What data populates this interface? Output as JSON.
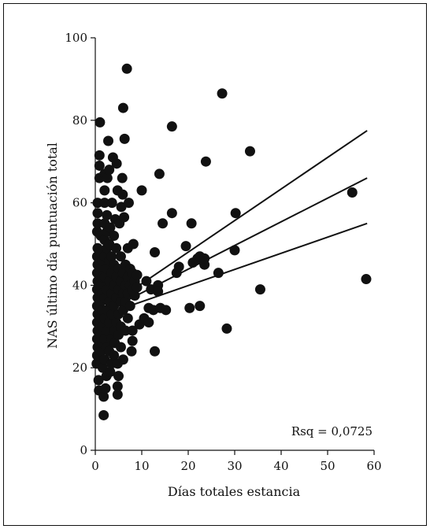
{
  "chart_data": {
    "type": "scatter",
    "title": "",
    "xlabel": "Días totales estancia",
    "ylabel": "NAS último día puntuación total",
    "xlim": [
      0,
      60
    ],
    "ylim": [
      0,
      100
    ],
    "x_ticks": [
      0,
      10,
      20,
      30,
      40,
      50,
      60
    ],
    "y_ticks": [
      0,
      20,
      40,
      60,
      80,
      100
    ],
    "grid": false,
    "annotation": "Rsq = 0,0725",
    "colors": {
      "points": "#111111",
      "lines": "#111111",
      "axes": "#111111"
    },
    "points": [
      {
        "x": 0.3,
        "y": 21
      },
      {
        "x": 0.4,
        "y": 23
      },
      {
        "x": 0.5,
        "y": 25
      },
      {
        "x": 0.4,
        "y": 27
      },
      {
        "x": 0.5,
        "y": 29
      },
      {
        "x": 0.4,
        "y": 31
      },
      {
        "x": 0.5,
        "y": 33
      },
      {
        "x": 0.4,
        "y": 35
      },
      {
        "x": 0.5,
        "y": 37
      },
      {
        "x": 0.4,
        "y": 39
      },
      {
        "x": 0.5,
        "y": 41
      },
      {
        "x": 0.4,
        "y": 43
      },
      {
        "x": 0.5,
        "y": 45
      },
      {
        "x": 0.4,
        "y": 47
      },
      {
        "x": 0.5,
        "y": 49
      },
      {
        "x": 0.4,
        "y": 53
      },
      {
        "x": 0.5,
        "y": 55
      },
      {
        "x": 0.5,
        "y": 57.5
      },
      {
        "x": 0.5,
        "y": 60
      },
      {
        "x": 0.7,
        "y": 17
      },
      {
        "x": 0.8,
        "y": 14.5
      },
      {
        "x": 0.9,
        "y": 66
      },
      {
        "x": 0.9,
        "y": 69
      },
      {
        "x": 0.9,
        "y": 71.5
      },
      {
        "x": 1.0,
        "y": 79.5
      },
      {
        "x": 1.2,
        "y": 24
      },
      {
        "x": 1.2,
        "y": 28
      },
      {
        "x": 1.2,
        "y": 32
      },
      {
        "x": 1.2,
        "y": 36
      },
      {
        "x": 1.2,
        "y": 40
      },
      {
        "x": 1.2,
        "y": 44
      },
      {
        "x": 1.2,
        "y": 48
      },
      {
        "x": 1.2,
        "y": 52
      },
      {
        "x": 1.5,
        "y": 42
      },
      {
        "x": 1.5,
        "y": 46
      },
      {
        "x": 1.5,
        "y": 38
      },
      {
        "x": 1.5,
        "y": 34
      },
      {
        "x": 1.5,
        "y": 30
      },
      {
        "x": 1.5,
        "y": 26
      },
      {
        "x": 1.6,
        "y": 20
      },
      {
        "x": 1.8,
        "y": 8.5
      },
      {
        "x": 1.8,
        "y": 13
      },
      {
        "x": 2.0,
        "y": 22
      },
      {
        "x": 2.0,
        "y": 27
      },
      {
        "x": 2.0,
        "y": 32
      },
      {
        "x": 2.0,
        "y": 37
      },
      {
        "x": 2.0,
        "y": 42
      },
      {
        "x": 2.0,
        "y": 47
      },
      {
        "x": 2.0,
        "y": 51
      },
      {
        "x": 2.0,
        "y": 55
      },
      {
        "x": 2.0,
        "y": 60
      },
      {
        "x": 2.0,
        "y": 63
      },
      {
        "x": 2.0,
        "y": 67
      },
      {
        "x": 2.2,
        "y": 15
      },
      {
        "x": 2.4,
        "y": 18
      },
      {
        "x": 2.5,
        "y": 25
      },
      {
        "x": 2.5,
        "y": 29
      },
      {
        "x": 2.5,
        "y": 34
      },
      {
        "x": 2.5,
        "y": 39
      },
      {
        "x": 2.5,
        "y": 44
      },
      {
        "x": 2.5,
        "y": 49
      },
      {
        "x": 2.5,
        "y": 53
      },
      {
        "x": 2.5,
        "y": 57
      },
      {
        "x": 2.6,
        "y": 66
      },
      {
        "x": 2.8,
        "y": 75
      },
      {
        "x": 3.0,
        "y": 24
      },
      {
        "x": 3.0,
        "y": 31
      },
      {
        "x": 3.0,
        "y": 36
      },
      {
        "x": 3.0,
        "y": 41
      },
      {
        "x": 3.0,
        "y": 46
      },
      {
        "x": 3.0,
        "y": 50
      },
      {
        "x": 3.0,
        "y": 68
      },
      {
        "x": 3.2,
        "y": 19
      },
      {
        "x": 3.2,
        "y": 54
      },
      {
        "x": 3.5,
        "y": 21
      },
      {
        "x": 3.5,
        "y": 27
      },
      {
        "x": 3.5,
        "y": 33
      },
      {
        "x": 3.5,
        "y": 38
      },
      {
        "x": 3.5,
        "y": 43
      },
      {
        "x": 3.5,
        "y": 47
      },
      {
        "x": 3.6,
        "y": 60
      },
      {
        "x": 3.8,
        "y": 71
      },
      {
        "x": 4.0,
        "y": 23
      },
      {
        "x": 4.0,
        "y": 29
      },
      {
        "x": 4.0,
        "y": 35
      },
      {
        "x": 4.0,
        "y": 40
      },
      {
        "x": 4.0,
        "y": 45
      },
      {
        "x": 4.0,
        "y": 52
      },
      {
        "x": 4.2,
        "y": 26
      },
      {
        "x": 4.3,
        "y": 56
      },
      {
        "x": 4.5,
        "y": 31
      },
      {
        "x": 4.5,
        "y": 37
      },
      {
        "x": 4.5,
        "y": 42
      },
      {
        "x": 4.5,
        "y": 49
      },
      {
        "x": 4.6,
        "y": 69.5
      },
      {
        "x": 4.8,
        "y": 13.5
      },
      {
        "x": 4.8,
        "y": 15.5
      },
      {
        "x": 4.8,
        "y": 21
      },
      {
        "x": 4.8,
        "y": 63
      },
      {
        "x": 5.0,
        "y": 18
      },
      {
        "x": 5.0,
        "y": 28
      },
      {
        "x": 5.0,
        "y": 33
      },
      {
        "x": 5.0,
        "y": 39
      },
      {
        "x": 5.0,
        "y": 44
      },
      {
        "x": 5.2,
        "y": 55
      },
      {
        "x": 5.5,
        "y": 25
      },
      {
        "x": 5.5,
        "y": 30
      },
      {
        "x": 5.5,
        "y": 36
      },
      {
        "x": 5.5,
        "y": 41
      },
      {
        "x": 5.5,
        "y": 47
      },
      {
        "x": 5.6,
        "y": 59
      },
      {
        "x": 5.8,
        "y": 66
      },
      {
        "x": 5.9,
        "y": 62
      },
      {
        "x": 6.0,
        "y": 83
      },
      {
        "x": 6.0,
        "y": 22
      },
      {
        "x": 6.0,
        "y": 34
      },
      {
        "x": 6.0,
        "y": 38
      },
      {
        "x": 6.0,
        "y": 43
      },
      {
        "x": 6.2,
        "y": 56.5
      },
      {
        "x": 6.3,
        "y": 75.5
      },
      {
        "x": 6.5,
        "y": 29
      },
      {
        "x": 6.5,
        "y": 36
      },
      {
        "x": 6.5,
        "y": 40
      },
      {
        "x": 6.5,
        "y": 45
      },
      {
        "x": 6.8,
        "y": 92.5
      },
      {
        "x": 7.0,
        "y": 32
      },
      {
        "x": 7.0,
        "y": 38
      },
      {
        "x": 7.0,
        "y": 42
      },
      {
        "x": 7.0,
        "y": 49
      },
      {
        "x": 7.2,
        "y": 60
      },
      {
        "x": 7.5,
        "y": 35
      },
      {
        "x": 7.5,
        "y": 40
      },
      {
        "x": 7.5,
        "y": 44
      },
      {
        "x": 7.8,
        "y": 24
      },
      {
        "x": 8.0,
        "y": 26.5
      },
      {
        "x": 8.0,
        "y": 29
      },
      {
        "x": 8.0,
        "y": 39
      },
      {
        "x": 8.0,
        "y": 43
      },
      {
        "x": 8.2,
        "y": 50
      },
      {
        "x": 8.5,
        "y": 37.5
      },
      {
        "x": 8.5,
        "y": 41
      },
      {
        "x": 9.0,
        "y": 39.5
      },
      {
        "x": 9.0,
        "y": 42.5
      },
      {
        "x": 9.5,
        "y": 30.5
      },
      {
        "x": 10.0,
        "y": 63
      },
      {
        "x": 10.5,
        "y": 32
      },
      {
        "x": 11.0,
        "y": 41
      },
      {
        "x": 11.5,
        "y": 34.5
      },
      {
        "x": 11.5,
        "y": 31
      },
      {
        "x": 12.0,
        "y": 39
      },
      {
        "x": 12.5,
        "y": 34
      },
      {
        "x": 12.8,
        "y": 24
      },
      {
        "x": 12.8,
        "y": 48
      },
      {
        "x": 13.5,
        "y": 40
      },
      {
        "x": 13.5,
        "y": 38.5
      },
      {
        "x": 13.8,
        "y": 67
      },
      {
        "x": 14.0,
        "y": 34.5
      },
      {
        "x": 14.5,
        "y": 55
      },
      {
        "x": 15.2,
        "y": 34
      },
      {
        "x": 16.5,
        "y": 78.5
      },
      {
        "x": 16.5,
        "y": 57.5
      },
      {
        "x": 17.5,
        "y": 43
      },
      {
        "x": 18.0,
        "y": 44.5
      },
      {
        "x": 19.5,
        "y": 49.5
      },
      {
        "x": 20.3,
        "y": 34.5
      },
      {
        "x": 20.7,
        "y": 55
      },
      {
        "x": 21.0,
        "y": 45.5
      },
      {
        "x": 22.0,
        "y": 46.5
      },
      {
        "x": 22.5,
        "y": 47
      },
      {
        "x": 22.5,
        "y": 35
      },
      {
        "x": 23.5,
        "y": 45
      },
      {
        "x": 23.5,
        "y": 46.5
      },
      {
        "x": 23.8,
        "y": 70
      },
      {
        "x": 26.5,
        "y": 43
      },
      {
        "x": 27.3,
        "y": 86.5
      },
      {
        "x": 28.3,
        "y": 29.5
      },
      {
        "x": 30.0,
        "y": 48.5
      },
      {
        "x": 30.2,
        "y": 57.5
      },
      {
        "x": 33.3,
        "y": 72.5
      },
      {
        "x": 35.5,
        "y": 39
      },
      {
        "x": 55.3,
        "y": 62.5
      },
      {
        "x": 58.3,
        "y": 41.5
      }
    ],
    "lines": [
      {
        "x": [
          1.0,
          58.5
        ],
        "y": [
          33.5,
          77.5
        ]
      },
      {
        "x": [
          1.0,
          58.5
        ],
        "y": [
          33.0,
          66.0
        ]
      },
      {
        "x": [
          1.0,
          58.5
        ],
        "y": [
          32.5,
          55.0
        ]
      }
    ]
  }
}
